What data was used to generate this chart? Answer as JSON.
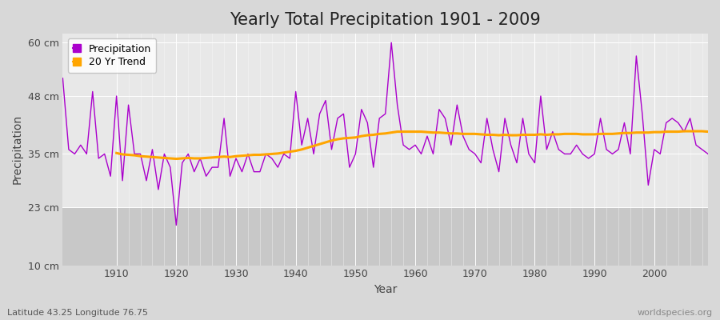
{
  "title": "Yearly Total Precipitation 1901 - 2009",
  "xlabel": "Year",
  "ylabel": "Precipitation",
  "subtitle": "Latitude 43.25 Longitude 76.75",
  "watermark": "worldspecies.org",
  "years": [
    1901,
    1902,
    1903,
    1904,
    1905,
    1906,
    1907,
    1908,
    1909,
    1910,
    1911,
    1912,
    1913,
    1914,
    1915,
    1916,
    1917,
    1918,
    1919,
    1920,
    1921,
    1922,
    1923,
    1924,
    1925,
    1926,
    1927,
    1928,
    1929,
    1930,
    1931,
    1932,
    1933,
    1934,
    1935,
    1936,
    1937,
    1938,
    1939,
    1940,
    1941,
    1942,
    1943,
    1944,
    1945,
    1946,
    1947,
    1948,
    1949,
    1950,
    1951,
    1952,
    1953,
    1954,
    1955,
    1956,
    1957,
    1958,
    1959,
    1960,
    1961,
    1962,
    1963,
    1964,
    1965,
    1966,
    1967,
    1968,
    1969,
    1970,
    1971,
    1972,
    1973,
    1974,
    1975,
    1976,
    1977,
    1978,
    1979,
    1980,
    1981,
    1982,
    1983,
    1984,
    1985,
    1986,
    1987,
    1988,
    1989,
    1990,
    1991,
    1992,
    1993,
    1994,
    1995,
    1996,
    1997,
    1998,
    1999,
    2000,
    2001,
    2002,
    2003,
    2004,
    2005,
    2006,
    2007,
    2008,
    2009
  ],
  "precipitation": [
    52,
    36,
    35,
    37,
    35,
    49,
    34,
    35,
    30,
    48,
    29,
    46,
    35,
    35,
    29,
    36,
    27,
    35,
    32,
    19,
    33,
    35,
    31,
    34,
    30,
    32,
    32,
    43,
    30,
    34,
    31,
    35,
    31,
    31,
    35,
    34,
    32,
    35,
    34,
    49,
    37,
    43,
    35,
    44,
    47,
    36,
    43,
    44,
    32,
    35,
    45,
    42,
    32,
    43,
    44,
    60,
    46,
    37,
    36,
    37,
    35,
    39,
    35,
    45,
    43,
    37,
    46,
    39,
    36,
    35,
    33,
    43,
    36,
    31,
    43,
    37,
    33,
    43,
    35,
    33,
    48,
    36,
    40,
    36,
    35,
    35,
    37,
    35,
    34,
    35,
    43,
    36,
    35,
    36,
    42,
    35,
    57,
    44,
    28,
    36,
    35,
    42,
    43,
    42,
    40,
    43,
    37,
    36,
    35
  ],
  "trend": [
    null,
    null,
    null,
    null,
    null,
    null,
    null,
    null,
    null,
    35.2,
    34.9,
    34.8,
    34.7,
    34.5,
    34.4,
    34.3,
    34.2,
    34.1,
    34.0,
    33.9,
    34.0,
    34.1,
    34.0,
    34.0,
    34.1,
    34.2,
    34.3,
    34.4,
    34.3,
    34.5,
    34.6,
    34.7,
    34.8,
    34.8,
    34.9,
    35.0,
    35.1,
    35.3,
    35.5,
    35.7,
    36.0,
    36.4,
    36.8,
    37.2,
    37.6,
    38.0,
    38.3,
    38.5,
    38.6,
    38.7,
    39.0,
    39.2,
    39.3,
    39.5,
    39.6,
    39.8,
    40.0,
    40.0,
    40.0,
    40.0,
    40.0,
    39.9,
    39.8,
    39.8,
    39.7,
    39.6,
    39.6,
    39.5,
    39.5,
    39.5,
    39.4,
    39.3,
    39.3,
    39.2,
    39.3,
    39.2,
    39.2,
    39.3,
    39.3,
    39.3,
    39.4,
    39.3,
    39.4,
    39.4,
    39.5,
    39.5,
    39.5,
    39.4,
    39.4,
    39.4,
    39.5,
    39.5,
    39.5,
    39.6,
    39.7,
    39.7,
    39.8,
    39.8,
    39.8,
    39.9,
    39.9,
    40.0,
    40.0,
    40.0,
    40.1,
    40.1,
    40.1,
    40.1,
    40.0
  ],
  "precip_color": "#AA00CC",
  "trend_color": "#FFA500",
  "fig_bg_color": "#D8D8D8",
  "plot_bg_upper_color": "#E8E8E8",
  "plot_bg_lower_color": "#C8C8C8",
  "grid_color": "#FFFFFF",
  "lower_band_y": 23,
  "ylim": [
    10,
    62
  ],
  "yticks": [
    10,
    23,
    35,
    48,
    60
  ],
  "ytick_labels": [
    "10 cm",
    "23 cm",
    "35 cm",
    "48 cm",
    "60 cm"
  ],
  "xticks": [
    1910,
    1920,
    1930,
    1940,
    1950,
    1960,
    1970,
    1980,
    1990,
    2000
  ],
  "title_fontsize": 15,
  "axis_label_fontsize": 10,
  "tick_fontsize": 9,
  "legend_fontsize": 9
}
